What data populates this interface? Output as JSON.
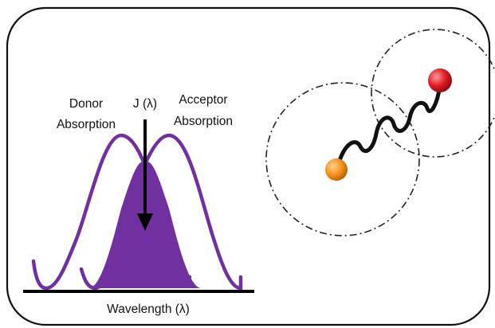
{
  "labels": {
    "donor_line1": "Donor",
    "donor_line2": "Absorption",
    "overlap": "J (λ)",
    "acceptor_line1": "Acceptor",
    "acceptor_line2": "Absorption",
    "x_axis": "Wavelength (λ)"
  },
  "colors": {
    "curve": "#7030a0",
    "overlap_fill": "#7030a0",
    "donor_sphere": "#f7931e",
    "acceptor_sphere": "#e01b24",
    "linker": "#111111",
    "frame": "#111111"
  },
  "icons": {
    "donor": "orange-sphere-icon",
    "acceptor": "red-sphere-icon",
    "linker": "wavy-linker-icon"
  }
}
